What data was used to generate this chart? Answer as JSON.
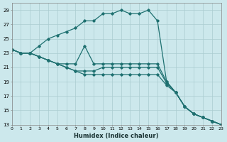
{
  "xlabel": "Humidex (Indice chaleur)",
  "bg_color": "#cce8ec",
  "grid_color": "#aaccd0",
  "line_color": "#1e7070",
  "ylim": [
    13,
    30
  ],
  "xlim": [
    0,
    23
  ],
  "yticks": [
    13,
    15,
    17,
    19,
    21,
    23,
    25,
    27,
    29
  ],
  "xticks": [
    0,
    1,
    2,
    3,
    4,
    5,
    6,
    7,
    8,
    9,
    10,
    11,
    12,
    13,
    14,
    15,
    16,
    17,
    18,
    19,
    20,
    21,
    22,
    23
  ],
  "lines": [
    {
      "x": [
        0,
        1,
        2,
        3,
        4,
        5,
        6,
        7,
        8,
        9,
        10,
        11,
        12,
        13,
        14,
        15,
        16,
        17,
        18,
        19,
        20,
        21,
        22,
        23
      ],
      "y": [
        23.5,
        23.0,
        23.0,
        24.0,
        25.0,
        25.5,
        26.0,
        26.5,
        27.5,
        27.5,
        28.5,
        28.5,
        29.0,
        28.5,
        28.5,
        29.0,
        27.5,
        19.0,
        17.5,
        15.5,
        14.5,
        14.0,
        13.5,
        13.0
      ]
    },
    {
      "x": [
        0,
        1,
        2,
        3,
        4,
        5,
        6,
        7,
        8,
        9,
        10,
        11,
        12,
        13,
        14,
        15,
        16,
        17,
        18,
        19,
        20,
        21,
        22,
        23
      ],
      "y": [
        23.5,
        23.0,
        23.0,
        22.5,
        22.0,
        21.5,
        21.5,
        21.5,
        24.0,
        21.5,
        21.5,
        21.5,
        21.5,
        21.5,
        21.5,
        21.5,
        21.5,
        19.0,
        17.5,
        15.5,
        14.5,
        14.0,
        13.5,
        13.0
      ]
    },
    {
      "x": [
        0,
        1,
        2,
        3,
        4,
        5,
        6,
        7,
        8,
        9,
        10,
        11,
        12,
        13,
        14,
        15,
        16,
        17,
        18,
        19,
        20,
        21,
        22,
        23
      ],
      "y": [
        23.5,
        23.0,
        23.0,
        22.5,
        22.0,
        21.5,
        21.0,
        20.5,
        20.5,
        20.5,
        21.0,
        21.0,
        21.0,
        21.0,
        21.0,
        21.0,
        21.0,
        18.8,
        17.5,
        15.5,
        14.5,
        14.0,
        13.5,
        13.0
      ]
    },
    {
      "x": [
        0,
        1,
        2,
        3,
        4,
        5,
        6,
        7,
        8,
        9,
        10,
        11,
        12,
        13,
        14,
        15,
        16,
        17,
        18,
        19,
        20,
        21,
        22,
        23
      ],
      "y": [
        23.5,
        23.0,
        23.0,
        22.5,
        22.0,
        21.5,
        21.0,
        20.5,
        20.0,
        20.0,
        20.0,
        20.0,
        20.0,
        20.0,
        20.0,
        20.0,
        20.0,
        18.5,
        17.5,
        15.5,
        14.5,
        14.0,
        13.5,
        13.0
      ]
    }
  ]
}
